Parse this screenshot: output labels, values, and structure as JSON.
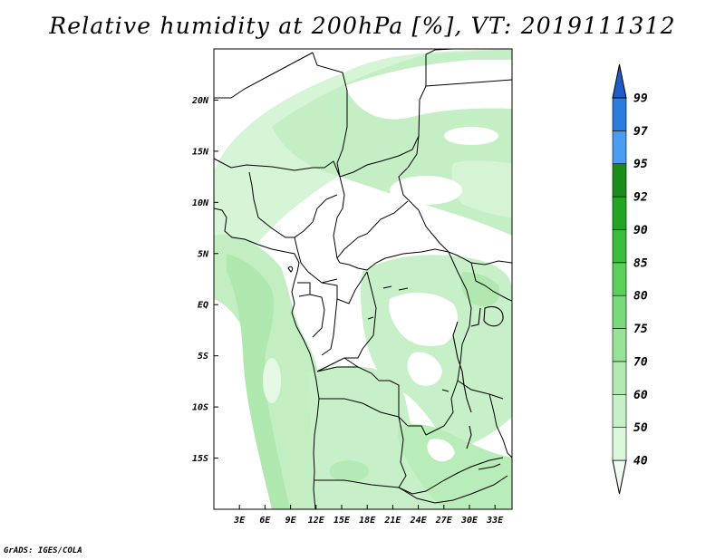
{
  "title": "Relative humidity at 200hPa [%], VT: 2019111312",
  "credit": "GrADS: IGES/COLA",
  "map": {
    "lon_labels": [
      "3E",
      "6E",
      "9E",
      "12E",
      "15E",
      "18E",
      "21E",
      "24E",
      "27E",
      "30E",
      "33E"
    ],
    "lat_labels": [
      "20N",
      "15N",
      "10N",
      "5N",
      "EQ",
      "5S",
      "10S",
      "15S"
    ],
    "lon_range": [
      0,
      35
    ],
    "lat_range": [
      -20,
      25
    ]
  },
  "colorbar": {
    "levels": [
      "40",
      "50",
      "60",
      "70",
      "75",
      "80",
      "85",
      "90",
      "92",
      "95",
      "97",
      "99"
    ],
    "colors": [
      "#f0fcf0",
      "#dcf6dc",
      "#c8f0c8",
      "#b2eab2",
      "#96e296",
      "#78da78",
      "#5ad05a",
      "#3cbc3c",
      "#22a622",
      "#1a8c1a",
      "#4a9cf0",
      "#2c7ce0",
      "#1c5cc8"
    ],
    "land_shading": "#c8f0c8"
  }
}
